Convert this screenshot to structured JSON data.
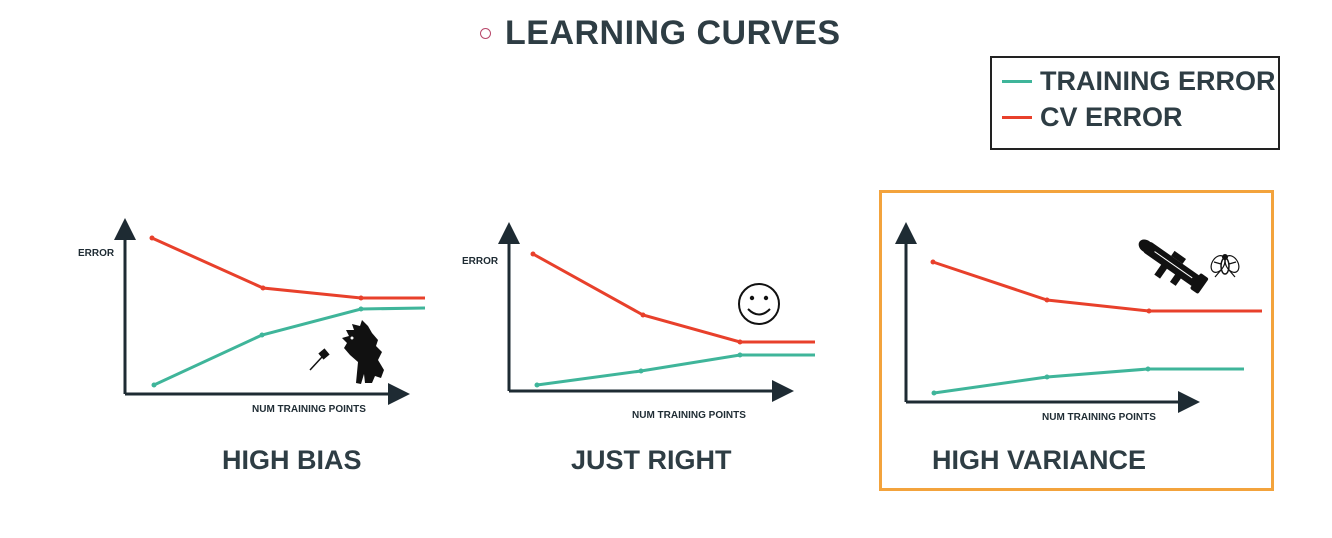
{
  "title": "LEARNING CURVES",
  "legend": {
    "training": {
      "label": "TRAINING ERROR",
      "color": "#3fb59a"
    },
    "cv": {
      "label": "CV ERROR",
      "color": "#e8402b"
    }
  },
  "accent_color": "#f3a33c",
  "panels": [
    {
      "label": "HIGH BIAS",
      "y_axis_label": "ERROR",
      "x_axis_label": "NUM TRAINING POINTS",
      "highlighted": false,
      "icons": [
        "dinosaur-icon",
        "fly-swatter-icon"
      ]
    },
    {
      "label": "JUST RIGHT",
      "y_axis_label": "ERROR",
      "x_axis_label": "NUM TRAINING POINTS",
      "highlighted": false,
      "icons": [
        "smiley-face-icon"
      ]
    },
    {
      "label": "HIGH VARIANCE",
      "y_axis_label": "",
      "x_axis_label": "NUM TRAINING POINTS",
      "highlighted": true,
      "icons": [
        "bazooka-icon",
        "fly-icon"
      ]
    }
  ]
}
